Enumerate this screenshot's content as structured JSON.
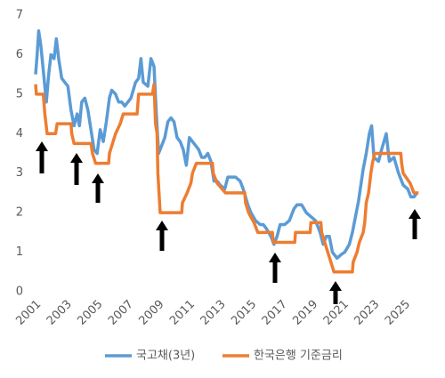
{
  "chart_data": {
    "type": "line",
    "xlim": [
      2001,
      2026
    ],
    "xticks": [
      2001,
      2003,
      2005,
      2007,
      2009,
      2011,
      2013,
      2015,
      2017,
      2019,
      2021,
      2023,
      2025
    ],
    "ylim": [
      0,
      7
    ],
    "yticks": [
      0,
      1,
      2,
      3,
      4,
      5,
      6,
      7
    ],
    "grid": false,
    "legend": "bottom",
    "series": [
      {
        "name": "국고채(3년)",
        "color": "#5b9bd5",
        "x": [
          2001.0,
          2001.1,
          2001.2,
          2001.35,
          2001.5,
          2001.7,
          2001.85,
          2002.0,
          2002.2,
          2002.35,
          2002.5,
          2002.7,
          2002.9,
          2003.1,
          2003.3,
          2003.5,
          2003.7,
          2003.85,
          2004.0,
          2004.2,
          2004.4,
          2004.6,
          2004.8,
          2005.0,
          2005.2,
          2005.4,
          2005.6,
          2005.8,
          2005.95,
          2006.2,
          2006.4,
          2006.6,
          2006.8,
          2007.0,
          2007.2,
          2007.5,
          2007.7,
          2007.85,
          2008.0,
          2008.3,
          2008.5,
          2008.7,
          2008.85,
          2009.0,
          2009.2,
          2009.4,
          2009.6,
          2009.8,
          2010.0,
          2010.2,
          2010.4,
          2010.6,
          2010.8,
          2011.0,
          2011.2,
          2011.4,
          2011.6,
          2011.8,
          2012.0,
          2012.2,
          2012.4,
          2012.6,
          2012.8,
          2013.0,
          2013.3,
          2013.5,
          2013.7,
          2014.0,
          2014.3,
          2014.5,
          2014.8,
          2015.0,
          2015.3,
          2015.6,
          2015.8,
          2016.0,
          2016.3,
          2016.5,
          2016.7,
          2016.9,
          2017.2,
          2017.5,
          2017.8,
          2018.0,
          2018.3,
          2018.6,
          2018.9,
          2019.2,
          2019.5,
          2019.7,
          2019.9,
          2020.1,
          2020.3,
          2020.6,
          2020.9,
          2021.1,
          2021.4,
          2021.6,
          2021.8,
          2022.0,
          2022.3,
          2022.5,
          2022.7,
          2022.85,
          2023.0,
          2023.3,
          2023.5,
          2023.8,
          2024.0,
          2024.3,
          2024.6,
          2024.9,
          2025.2,
          2025.4,
          2025.6,
          2025.8
        ],
        "values": [
          5.5,
          6.0,
          6.6,
          6.2,
          5.6,
          4.8,
          5.5,
          6.0,
          5.9,
          6.4,
          5.9,
          5.4,
          5.3,
          5.2,
          4.6,
          4.2,
          4.5,
          4.2,
          4.8,
          4.9,
          4.6,
          4.1,
          3.6,
          3.5,
          4.1,
          3.8,
          4.3,
          4.9,
          5.1,
          5.0,
          4.8,
          4.8,
          4.7,
          4.8,
          4.9,
          5.3,
          5.4,
          5.9,
          5.3,
          5.2,
          5.9,
          5.7,
          4.5,
          3.5,
          3.7,
          3.9,
          4.3,
          4.4,
          4.3,
          3.9,
          3.8,
          3.6,
          3.2,
          3.9,
          3.8,
          3.7,
          3.6,
          3.4,
          3.4,
          3.5,
          3.3,
          2.8,
          2.8,
          2.7,
          2.6,
          2.9,
          2.9,
          2.9,
          2.8,
          2.6,
          2.2,
          2.0,
          1.8,
          1.7,
          1.7,
          1.6,
          1.4,
          1.2,
          1.4,
          1.7,
          1.7,
          1.8,
          2.1,
          2.2,
          2.2,
          2.0,
          1.9,
          1.8,
          1.5,
          1.2,
          1.4,
          1.4,
          1.0,
          0.85,
          0.95,
          1.0,
          1.2,
          1.5,
          1.9,
          2.3,
          3.1,
          3.5,
          4.0,
          4.2,
          3.4,
          3.3,
          3.6,
          4.0,
          3.3,
          3.4,
          3.0,
          2.7,
          2.6,
          2.4,
          2.4,
          2.5
        ]
      },
      {
        "name": "한국은행 기준금리",
        "color": "#ed7d31",
        "x": [
          2001.0,
          2001.05,
          2001.5,
          2001.6,
          2001.75,
          2002.3,
          2002.4,
          2003.3,
          2003.35,
          2003.5,
          2004.6,
          2004.7,
          2004.9,
          2005.75,
          2005.8,
          2006.0,
          2006.2,
          2006.5,
          2006.7,
          2007.6,
          2007.7,
          2008.6,
          2008.7,
          2008.8,
          2008.9,
          2008.95,
          2009.1,
          2010.5,
          2010.55,
          2010.85,
          2011.1,
          2011.2,
          2011.45,
          2012.5,
          2012.55,
          2012.8,
          2013.35,
          2014.6,
          2014.65,
          2014.85,
          2015.2,
          2015.45,
          2016.4,
          2016.45,
          2017.85,
          2017.9,
          2018.85,
          2018.9,
          2019.55,
          2019.6,
          2019.8,
          2020.2,
          2020.4,
          2021.6,
          2021.65,
          2021.9,
          2022.05,
          2022.3,
          2022.4,
          2022.5,
          2022.65,
          2022.8,
          2022.9,
          2023.05,
          2024.75,
          2024.8,
          2024.9,
          2025.35,
          2025.6,
          2025.9
        ],
        "values": [
          5.25,
          5.0,
          5.0,
          4.5,
          4.0,
          4.0,
          4.25,
          4.25,
          4.0,
          3.75,
          3.75,
          3.5,
          3.25,
          3.25,
          3.5,
          3.75,
          4.0,
          4.25,
          4.5,
          4.5,
          5.0,
          5.0,
          5.25,
          4.25,
          4.0,
          3.0,
          2.0,
          2.0,
          2.25,
          2.5,
          2.75,
          3.0,
          3.25,
          3.25,
          3.0,
          2.75,
          2.5,
          2.5,
          2.25,
          2.0,
          1.75,
          1.5,
          1.5,
          1.25,
          1.25,
          1.5,
          1.5,
          1.75,
          1.75,
          1.5,
          1.25,
          0.75,
          0.5,
          0.5,
          0.75,
          1.0,
          1.25,
          1.5,
          1.75,
          2.25,
          2.5,
          3.0,
          3.25,
          3.5,
          3.5,
          3.25,
          3.0,
          2.75,
          2.5,
          2.5
        ]
      }
    ]
  }
}
